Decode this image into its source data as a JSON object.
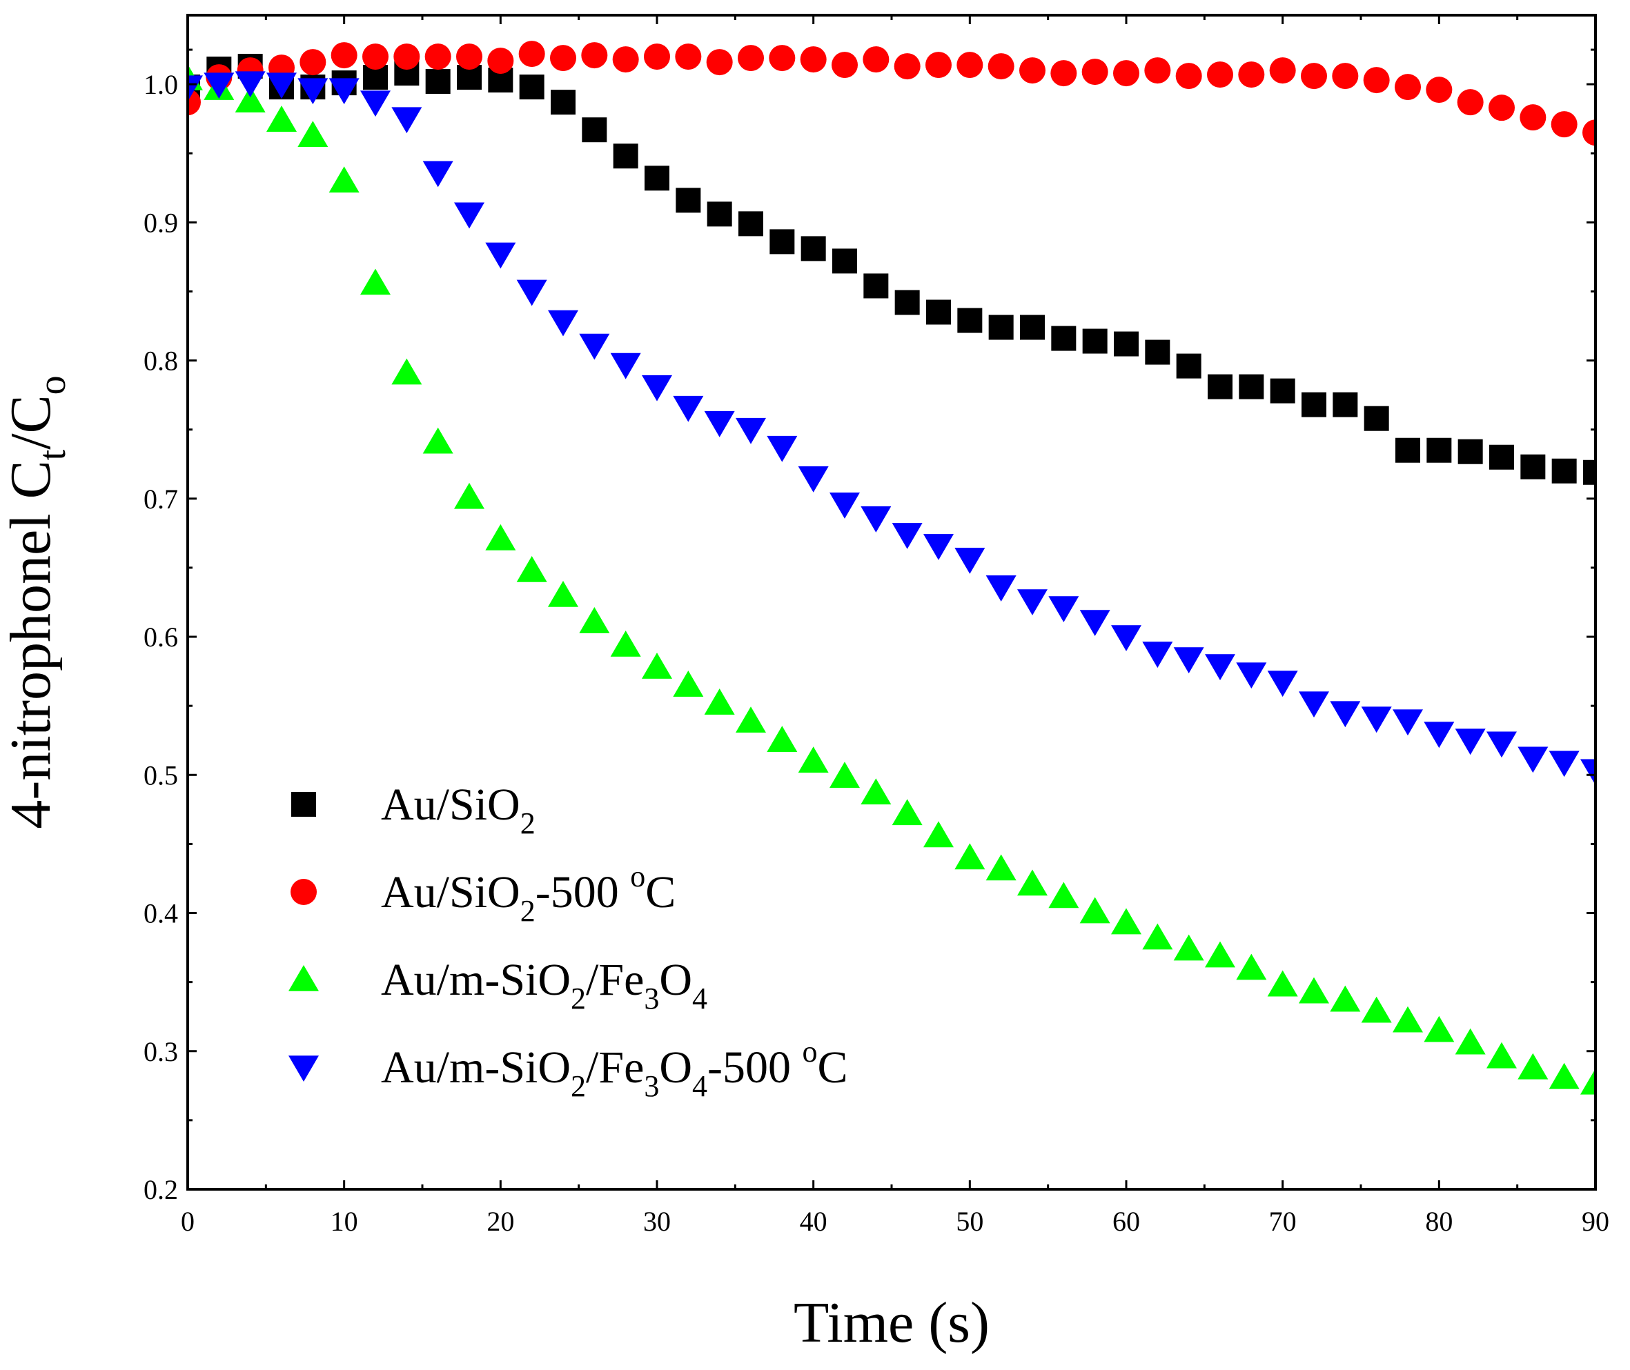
{
  "chart_data": {
    "type": "scatter",
    "title": "",
    "xlabel": "Time (s)",
    "ylabel": {
      "prefix": "4-nitrophonel C",
      "sub1": "t",
      "mid": "/C",
      "sub2": "o"
    },
    "xlim": [
      0,
      90
    ],
    "ylim": [
      0.2,
      1.05
    ],
    "xticks": [
      0,
      10,
      20,
      30,
      40,
      50,
      60,
      70,
      80,
      90
    ],
    "xtick_labels": [
      "0",
      "10",
      "20",
      "30",
      "40",
      "50",
      "60",
      "70",
      "80",
      "90"
    ],
    "yticks": [
      0.2,
      0.3,
      0.4,
      0.5,
      0.6,
      0.7,
      0.8,
      0.9,
      1.0
    ],
    "ytick_labels": [
      "0.2",
      "0.3",
      "0.4",
      "0.5",
      "0.6",
      "0.7",
      "0.8",
      "0.9",
      "1.0"
    ],
    "grid": false,
    "legend_position": "bottom-left",
    "x": [
      0,
      2,
      4,
      6,
      8,
      10,
      12,
      14,
      16,
      18,
      20,
      22,
      24,
      26,
      28,
      30,
      32,
      34,
      36,
      38,
      40,
      42,
      44,
      46,
      48,
      50,
      52,
      54,
      56,
      58,
      60,
      62,
      64,
      66,
      68,
      70,
      72,
      74,
      76,
      78,
      80,
      82,
      84,
      86,
      88,
      90
    ],
    "series": [
      {
        "name": "Au/SiO2",
        "legend": [
          {
            "t": "Au/SiO"
          },
          {
            "t": "2",
            "sub": true
          }
        ],
        "marker": "square",
        "color": "#000000",
        "values": [
          0.998,
          1.011,
          1.013,
          0.998,
          0.998,
          1.001,
          1.005,
          1.008,
          1.002,
          1.005,
          1.003,
          0.998,
          0.987,
          0.967,
          0.948,
          0.932,
          0.916,
          0.906,
          0.899,
          0.886,
          0.881,
          0.872,
          0.854,
          0.842,
          0.835,
          0.829,
          0.824,
          0.824,
          0.816,
          0.814,
          0.812,
          0.806,
          0.796,
          0.781,
          0.781,
          0.778,
          0.768,
          0.768,
          0.758,
          0.735,
          0.735,
          0.734,
          0.73,
          0.723,
          0.72,
          0.719
        ]
      },
      {
        "name": "Au/SiO2-500 oC",
        "legend": [
          {
            "t": "Au/SiO"
          },
          {
            "t": "2",
            "sub": true
          },
          {
            "t": "-500 "
          },
          {
            "t": "o",
            "sup": true
          },
          {
            "t": "C"
          }
        ],
        "marker": "circle",
        "color": "#ff0000",
        "values": [
          0.987,
          1.005,
          1.01,
          1.012,
          1.016,
          1.021,
          1.02,
          1.02,
          1.02,
          1.02,
          1.017,
          1.022,
          1.019,
          1.021,
          1.018,
          1.02,
          1.02,
          1.016,
          1.019,
          1.019,
          1.018,
          1.014,
          1.018,
          1.013,
          1.014,
          1.014,
          1.013,
          1.01,
          1.008,
          1.009,
          1.008,
          1.01,
          1.006,
          1.007,
          1.007,
          1.01,
          1.006,
          1.006,
          1.003,
          0.998,
          0.996,
          0.987,
          0.983,
          0.976,
          0.971,
          0.965
        ]
      },
      {
        "name": "Au/m-SiO2/Fe3O4",
        "legend": [
          {
            "t": "Au/m-SiO"
          },
          {
            "t": "2",
            "sub": true
          },
          {
            "t": "/Fe"
          },
          {
            "t": "3",
            "sub": true
          },
          {
            "t": "O"
          },
          {
            "t": "4",
            "sub": true
          }
        ],
        "marker": "triangle-up",
        "color": "#00ff00",
        "values": [
          1.004,
          0.997,
          0.988,
          0.974,
          0.963,
          0.93,
          0.856,
          0.791,
          0.741,
          0.701,
          0.671,
          0.648,
          0.63,
          0.611,
          0.594,
          0.578,
          0.565,
          0.552,
          0.539,
          0.525,
          0.51,
          0.499,
          0.487,
          0.472,
          0.456,
          0.44,
          0.432,
          0.421,
          0.412,
          0.401,
          0.393,
          0.382,
          0.374,
          0.369,
          0.36,
          0.348,
          0.343,
          0.337,
          0.329,
          0.322,
          0.315,
          0.306,
          0.296,
          0.288,
          0.281,
          0.277
        ]
      },
      {
        "name": "Au/m-SiO2/Fe3O4-500 oC",
        "legend": [
          {
            "t": "Au/m-SiO"
          },
          {
            "t": "2",
            "sub": true
          },
          {
            "t": "/Fe"
          },
          {
            "t": "3",
            "sub": true
          },
          {
            "t": "O"
          },
          {
            "t": "4",
            "sub": true
          },
          {
            "t": "-500 "
          },
          {
            "t": "o",
            "sup": true
          },
          {
            "t": "C"
          }
        ],
        "marker": "triangle-down",
        "color": "#0000ff",
        "values": [
          0.998,
          1.0,
          1.001,
          1.0,
          0.996,
          0.996,
          0.987,
          0.975,
          0.936,
          0.906,
          0.877,
          0.85,
          0.828,
          0.811,
          0.797,
          0.781,
          0.766,
          0.755,
          0.75,
          0.737,
          0.715,
          0.696,
          0.686,
          0.674,
          0.666,
          0.656,
          0.636,
          0.626,
          0.621,
          0.611,
          0.6,
          0.588,
          0.584,
          0.579,
          0.573,
          0.567,
          0.552,
          0.545,
          0.541,
          0.539,
          0.53,
          0.525,
          0.523,
          0.512,
          0.509,
          0.503
        ]
      }
    ]
  }
}
